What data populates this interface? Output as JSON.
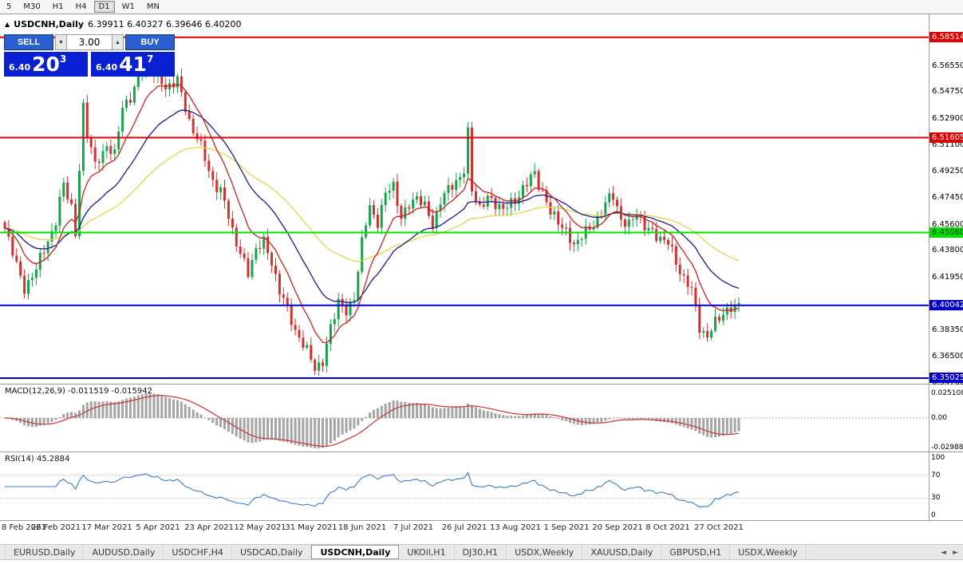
{
  "toolbar": {
    "timeframes": [
      "5",
      "M30",
      "H1",
      "H4",
      "D1",
      "W1",
      "MN"
    ],
    "active_timeframe": "D1"
  },
  "chart_header": {
    "icon": "▲",
    "symbol": "USDCNH,Daily",
    "ohlc_text": "6.39911 6.40327 6.39646 6.40200"
  },
  "trade_panel": {
    "sell_label": "SELL",
    "buy_label": "BUY",
    "volume": "3.00",
    "spin_down_icon": "▼",
    "spin_up_icon": "▲",
    "bid": {
      "prefix": "6.40",
      "big": "20",
      "sup": "3"
    },
    "ask": {
      "prefix": "6.40",
      "big": "41",
      "sup": "7"
    }
  },
  "price_axis": {
    "ticks": [
      {
        "label": "6.56550",
        "price": 6.5655
      },
      {
        "label": "6.54750",
        "price": 6.5475
      },
      {
        "label": "6.52900",
        "price": 6.529
      },
      {
        "label": "6.51100",
        "price": 6.511
      },
      {
        "label": "6.49250",
        "price": 6.4925
      },
      {
        "label": "6.47450",
        "price": 6.4745
      },
      {
        "label": "6.45600",
        "price": 6.456
      },
      {
        "label": "6.43800",
        "price": 6.438
      },
      {
        "label": "6.41950",
        "price": 6.4195
      },
      {
        "label": "6.38350",
        "price": 6.3835
      },
      {
        "label": "6.36500",
        "price": 6.365
      },
      {
        "label": "6.34700",
        "price": 6.347
      }
    ],
    "badges": [
      {
        "label": "6.58514",
        "price": 6.58514,
        "bg": "#e00000",
        "fg": "#ffffff"
      },
      {
        "label": "6.51605",
        "price": 6.51605,
        "bg": "#e00000",
        "fg": "#ffffff"
      },
      {
        "label": "6.45060",
        "price": 6.4506,
        "bg": "#00e100",
        "fg": "#002b00"
      },
      {
        "label": "6.40042",
        "price": 6.40042,
        "bg": "#0000c8",
        "fg": "#ffffff"
      },
      {
        "label": "6.35025",
        "price": 6.35025,
        "bg": "#0000c8",
        "fg": "#ffffff"
      }
    ]
  },
  "macd_panel": {
    "label": "MACD(12,26,9) -0.011519 -0.015942",
    "axis": [
      {
        "label": "0.025108",
        "value": 0.025108
      },
      {
        "label": "0.00",
        "value": 0
      },
      {
        "label": "-0.02988",
        "value": -0.029881
      }
    ]
  },
  "rsi_panel": {
    "label": "RSI(14) 45.2884",
    "axis": [
      {
        "label": "100",
        "value": 100
      },
      {
        "label": "70",
        "value": 70
      },
      {
        "label": "30",
        "value": 30
      },
      {
        "label": "0",
        "value": 0
      }
    ],
    "levels": [
      70,
      30
    ]
  },
  "time_axis": [
    "8 Feb 2021",
    "26 Feb 2021",
    "17 Mar 2021",
    "5 Apr 2021",
    "23 Apr 2021",
    "12 May 2021",
    "31 May 2021",
    "18 Jun 2021",
    "7 Jul 2021",
    "26 Jul 2021",
    "13 Aug 2021",
    "1 Sep 2021",
    "20 Sep 2021",
    "8 Oct 2021",
    "27 Oct 2021"
  ],
  "tabs": {
    "items": [
      "EURUSD,Daily",
      "AUDUSD,Daily",
      "USDCHF,H4",
      "USDCAD,Daily",
      "USDCNH,Daily",
      "UKOil,H1",
      "DJ30,H1",
      "USDX,Weekly",
      "XAUUSD,Daily",
      "GBPUSD,H1",
      "USDX,Weekly"
    ],
    "active": "USDCNH,Daily",
    "scroll_left_icon": "◄",
    "scroll_right_icon": "►"
  },
  "chart_data": {
    "type": "candlestick",
    "title": "USDCNH Daily",
    "y_range": [
      6.3464,
      6.601
    ],
    "x_labels": [
      "8 Feb 2021",
      "26 Feb 2021",
      "17 Mar 2021",
      "5 Apr 2021",
      "23 Apr 2021",
      "12 May 2021",
      "31 May 2021",
      "18 Jun 2021",
      "7 Jul 2021",
      "26 Jul 2021",
      "13 Aug 2021",
      "1 Sep 2021",
      "20 Sep 2021",
      "8 Oct 2021",
      "27 Oct 2021"
    ],
    "candle_count": 188,
    "last_ohlc": {
      "open": 6.39911,
      "high": 6.40327,
      "low": 6.39646,
      "close": 6.402
    },
    "close_anchors": [
      [
        0,
        6.452
      ],
      [
        2,
        6.438
      ],
      [
        5,
        6.412
      ],
      [
        8,
        6.424
      ],
      [
        11,
        6.447
      ],
      [
        13,
        6.458
      ],
      [
        15,
        6.482
      ],
      [
        17,
        6.47
      ],
      [
        18,
        6.452
      ],
      [
        20,
        6.536
      ],
      [
        21,
        6.518
      ],
      [
        23,
        6.498
      ],
      [
        25,
        6.505
      ],
      [
        26,
        6.512
      ],
      [
        28,
        6.504
      ],
      [
        30,
        6.535
      ],
      [
        33,
        6.552
      ],
      [
        36,
        6.565
      ],
      [
        39,
        6.562
      ],
      [
        41,
        6.548
      ],
      [
        44,
        6.556
      ],
      [
        47,
        6.528
      ],
      [
        50,
        6.508
      ],
      [
        52,
        6.494
      ],
      [
        55,
        6.478
      ],
      [
        58,
        6.452
      ],
      [
        60,
        6.438
      ],
      [
        62,
        6.422
      ],
      [
        64,
        6.438
      ],
      [
        66,
        6.445
      ],
      [
        68,
        6.432
      ],
      [
        70,
        6.408
      ],
      [
        73,
        6.392
      ],
      [
        76,
        6.372
      ],
      [
        79,
        6.358
      ],
      [
        81,
        6.362
      ],
      [
        83,
        6.385
      ],
      [
        85,
        6.402
      ],
      [
        87,
        6.396
      ],
      [
        89,
        6.408
      ],
      [
        91,
        6.442
      ],
      [
        93,
        6.468
      ],
      [
        95,
        6.46
      ],
      [
        97,
        6.476
      ],
      [
        99,
        6.482
      ],
      [
        101,
        6.462
      ],
      [
        103,
        6.47
      ],
      [
        105,
        6.474
      ],
      [
        107,
        6.468
      ],
      [
        109,
        6.458
      ],
      [
        111,
        6.472
      ],
      [
        113,
        6.478
      ],
      [
        115,
        6.488
      ],
      [
        117,
        6.494
      ],
      [
        118,
        6.518
      ],
      [
        119,
        6.478
      ],
      [
        121,
        6.468
      ],
      [
        123,
        6.476
      ],
      [
        125,
        6.47
      ],
      [
        127,
        6.465
      ],
      [
        129,
        6.472
      ],
      [
        131,
        6.478
      ],
      [
        133,
        6.482
      ],
      [
        135,
        6.492
      ],
      [
        137,
        6.48
      ],
      [
        139,
        6.463
      ],
      [
        141,
        6.458
      ],
      [
        143,
        6.452
      ],
      [
        145,
        6.442
      ],
      [
        147,
        6.448
      ],
      [
        149,
        6.452
      ],
      [
        151,
        6.462
      ],
      [
        153,
        6.47
      ],
      [
        155,
        6.474
      ],
      [
        157,
        6.462
      ],
      [
        159,
        6.456
      ],
      [
        161,
        6.462
      ],
      [
        163,
        6.455
      ],
      [
        165,
        6.452
      ],
      [
        167,
        6.446
      ],
      [
        169,
        6.442
      ],
      [
        171,
        6.432
      ],
      [
        173,
        6.42
      ],
      [
        175,
        6.408
      ],
      [
        176,
        6.398
      ],
      [
        177,
        6.386
      ],
      [
        179,
        6.38
      ],
      [
        181,
        6.388
      ],
      [
        183,
        6.394
      ],
      [
        185,
        6.399
      ],
      [
        187,
        6.402
      ]
    ],
    "horizontal_lines": [
      {
        "price": 6.58514,
        "color": "#e00000"
      },
      {
        "price": 6.51605,
        "color": "#e00000"
      },
      {
        "price": 6.4506,
        "color": "#00e100"
      },
      {
        "price": 6.40042,
        "color": "#0000c8"
      },
      {
        "price": 6.35025,
        "color": "#0000c8"
      }
    ],
    "moving_averages": [
      {
        "period": 55,
        "color": "#e9d44c"
      },
      {
        "period": 25,
        "color": "#1a1a8c"
      },
      {
        "period": 10,
        "color": "#cc2222"
      }
    ],
    "colors": {
      "bull": "#18a34a",
      "bear": "#cf3030",
      "macd_hist": "#a4a4a4",
      "macd_signal": "#cc3333",
      "rsi_line": "#3b7bc4"
    },
    "indicators": {
      "macd": {
        "fast": 12,
        "slow": 26,
        "signal": 9,
        "current_macd": -0.011519,
        "current_signal": -0.015942
      },
      "rsi": {
        "period": 14,
        "current": 45.2884
      }
    }
  }
}
